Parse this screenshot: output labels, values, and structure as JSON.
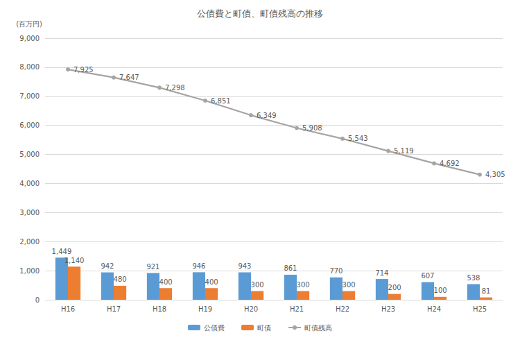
{
  "chart_data": {
    "type": "bar",
    "title": "公債費と町債、町債残高の推移",
    "y_label": "(百万円)",
    "categories": [
      "H16",
      "H17",
      "H18",
      "H19",
      "H20",
      "H21",
      "H22",
      "H23",
      "H24",
      "H25"
    ],
    "series": [
      {
        "name": "公債費",
        "type": "bar",
        "color": "#5B9BD5",
        "values": [
          1449,
          942,
          921,
          946,
          943,
          861,
          770,
          714,
          607,
          538
        ],
        "value_labels": [
          "1,449",
          "942",
          "921",
          "946",
          "943",
          "861",
          "770",
          "714",
          "607",
          "538"
        ]
      },
      {
        "name": "町債",
        "type": "bar",
        "color": "#ED7D31",
        "values": [
          1140,
          480,
          400,
          400,
          300,
          300,
          300,
          200,
          100,
          81
        ],
        "value_labels": [
          "1,140",
          "480",
          "400",
          "400",
          "300",
          "300",
          "300",
          "200",
          "100",
          "81"
        ]
      },
      {
        "name": "町債残高",
        "type": "line",
        "color": "#A5A5A5",
        "marker": "circle",
        "values": [
          7925,
          7647,
          7298,
          6851,
          6349,
          5908,
          5543,
          5119,
          4692,
          4305
        ],
        "value_labels": [
          "7,925",
          "7,647",
          "7,298",
          "6,851",
          "6,349",
          "5,908",
          "5,543",
          "5,119",
          "4,692",
          "4,305"
        ]
      }
    ],
    "ylim": [
      0,
      9000
    ],
    "yticks": [
      0,
      {
        "value": 1000,
        "label": "1,000"
      },
      {
        "value": 2000,
        "label": "2,000"
      },
      {
        "value": 3000,
        "label": "3,000"
      },
      {
        "value": 4000,
        "label": "4,000"
      },
      {
        "value": 5000,
        "label": "5,000"
      },
      {
        "value": 6000,
        "label": "6,000"
      },
      {
        "value": 7000,
        "label": "7,000"
      },
      {
        "value": 8000,
        "label": "8,000"
      },
      {
        "value": 9000,
        "label": "9,000"
      }
    ],
    "grid": true,
    "legend": "bottom",
    "data_labels": true
  }
}
